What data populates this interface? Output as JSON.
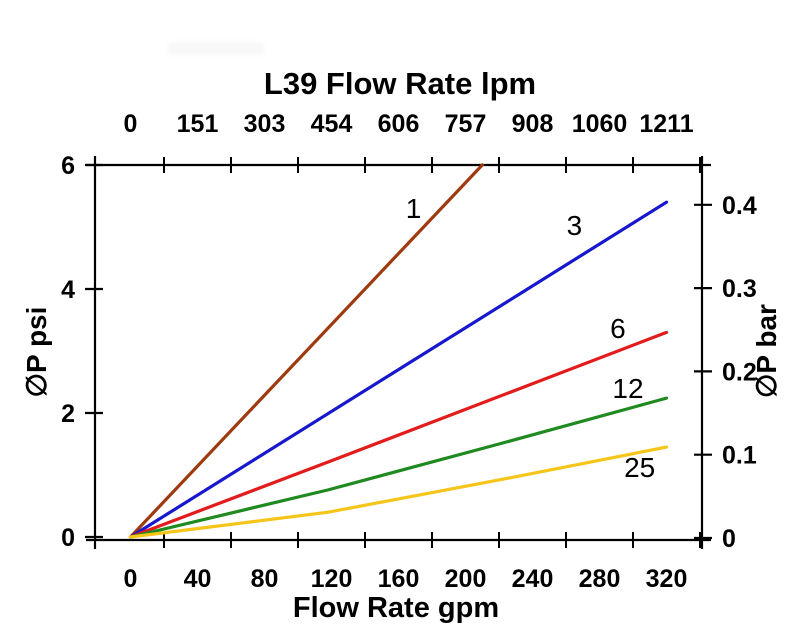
{
  "background_color": "#ffffff",
  "frame_color": "#000000",
  "text_color": "#000000",
  "chart_data": {
    "type": "line",
    "title": "L39 Flow Rate lpm",
    "top_axis": {
      "title": "L39 Flow Rate lpm",
      "units": "lpm",
      "tick_labels": [
        "0",
        "151",
        "303",
        "454",
        "606",
        "757",
        "908",
        "1060",
        "1211"
      ],
      "tick_positions_gpm": [
        0,
        40,
        80,
        120,
        160,
        200,
        240,
        280,
        320
      ]
    },
    "bottom_axis": {
      "title": "Flow Rate gpm",
      "units": "gpm",
      "tick_labels": [
        "0",
        "40",
        "80",
        "120",
        "160",
        "200",
        "240",
        "280",
        "320"
      ],
      "tick_positions_gpm": [
        0,
        40,
        80,
        120,
        160,
        200,
        240,
        280,
        320
      ],
      "minor_ticks_gpm": [
        20,
        60,
        100,
        140,
        180,
        220,
        260,
        300,
        340
      ]
    },
    "left_axis": {
      "title": "∅P psi",
      "units": "psi",
      "tick_labels": [
        "0",
        "2",
        "4",
        "6"
      ],
      "ticks_psi": [
        0,
        2,
        4,
        6
      ]
    },
    "right_axis": {
      "title": "∅P bar",
      "units": "bar",
      "tick_labels": [
        "0",
        "0.1",
        "0.2",
        "0.3",
        "0.4"
      ],
      "ticks_bar": [
        0,
        0.1,
        0.2,
        0.3,
        0.4
      ]
    },
    "xlim_gpm": [
      -21,
      341
    ],
    "ylim_psi": [
      0,
      6
    ],
    "grid": false,
    "series": [
      {
        "label": "1",
        "color": "#9e3a10",
        "points_gpm_psi": [
          [
            0,
            0
          ],
          [
            210,
            6.0
          ]
        ]
      },
      {
        "label": "3",
        "color": "#1717ce",
        "points_gpm_psi": [
          [
            0,
            0
          ],
          [
            320,
            5.4
          ]
        ]
      },
      {
        "label": "6",
        "color": "#e21c1c",
        "points_gpm_psi": [
          [
            0,
            0
          ],
          [
            118,
            1.21
          ],
          [
            320,
            3.3
          ]
        ]
      },
      {
        "label": "12",
        "color": "#1f8a1f",
        "points_gpm_psi": [
          [
            0,
            0
          ],
          [
            118,
            0.76
          ],
          [
            220,
            1.5
          ],
          [
            320,
            2.24
          ]
        ]
      },
      {
        "label": "25",
        "color": "#f5c51a",
        "points_gpm_psi": [
          [
            0,
            0
          ],
          [
            118,
            0.4
          ],
          [
            220,
            0.92
          ],
          [
            320,
            1.45
          ]
        ]
      }
    ],
    "series_labels": [
      {
        "text": "1",
        "gpm": 169,
        "psi": 5.31
      },
      {
        "text": "3",
        "gpm": 265,
        "psi": 5.03
      },
      {
        "text": "6",
        "gpm": 291,
        "psi": 3.37
      },
      {
        "text": "12",
        "gpm": 297,
        "psi": 2.4
      },
      {
        "text": "25",
        "gpm": 304,
        "psi": 1.13
      }
    ]
  }
}
